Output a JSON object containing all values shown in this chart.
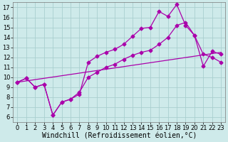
{
  "bg_color": "#ceeaea",
  "grid_color": "#aacfcf",
  "line_color": "#aa00aa",
  "xlim": [
    -0.5,
    23.5
  ],
  "ylim": [
    5.5,
    17.5
  ],
  "xticks": [
    0,
    1,
    2,
    3,
    4,
    5,
    6,
    7,
    8,
    9,
    10,
    11,
    12,
    13,
    14,
    15,
    16,
    17,
    18,
    19,
    20,
    21,
    22,
    23
  ],
  "yticks": [
    6,
    7,
    8,
    9,
    10,
    11,
    12,
    13,
    14,
    15,
    16,
    17
  ],
  "xlabel": "Windchill (Refroidissement éolien,°C)",
  "tick_fontsize": 6,
  "xlabel_fontsize": 7,
  "line1_x": [
    0,
    1,
    2,
    3,
    4,
    5,
    6,
    7,
    8,
    9,
    10,
    11,
    12,
    13,
    14,
    15,
    16,
    17,
    18,
    19,
    20,
    21,
    22,
    23
  ],
  "line1_y": [
    9.5,
    9.9,
    9.0,
    9.3,
    6.2,
    7.5,
    7.8,
    8.3,
    11.5,
    12.1,
    12.5,
    12.8,
    13.3,
    14.1,
    14.9,
    15.0,
    16.6,
    16.1,
    17.3,
    15.2,
    14.2,
    11.1,
    12.6,
    12.3
  ],
  "line2_x": [
    0,
    1,
    2,
    3,
    4,
    5,
    6,
    7,
    8,
    9,
    10,
    11,
    12,
    13,
    14,
    15,
    16,
    17,
    18,
    19,
    20,
    21,
    22,
    23
  ],
  "line2_y": [
    9.5,
    9.9,
    9.0,
    9.3,
    6.2,
    7.5,
    7.8,
    8.5,
    10.0,
    10.5,
    11.0,
    11.3,
    11.8,
    12.2,
    12.5,
    12.7,
    13.3,
    14.0,
    15.2,
    15.5,
    14.2,
    12.3,
    12.0,
    11.5
  ],
  "line3_x": [
    0,
    23
  ],
  "line3_y": [
    9.5,
    12.5
  ]
}
